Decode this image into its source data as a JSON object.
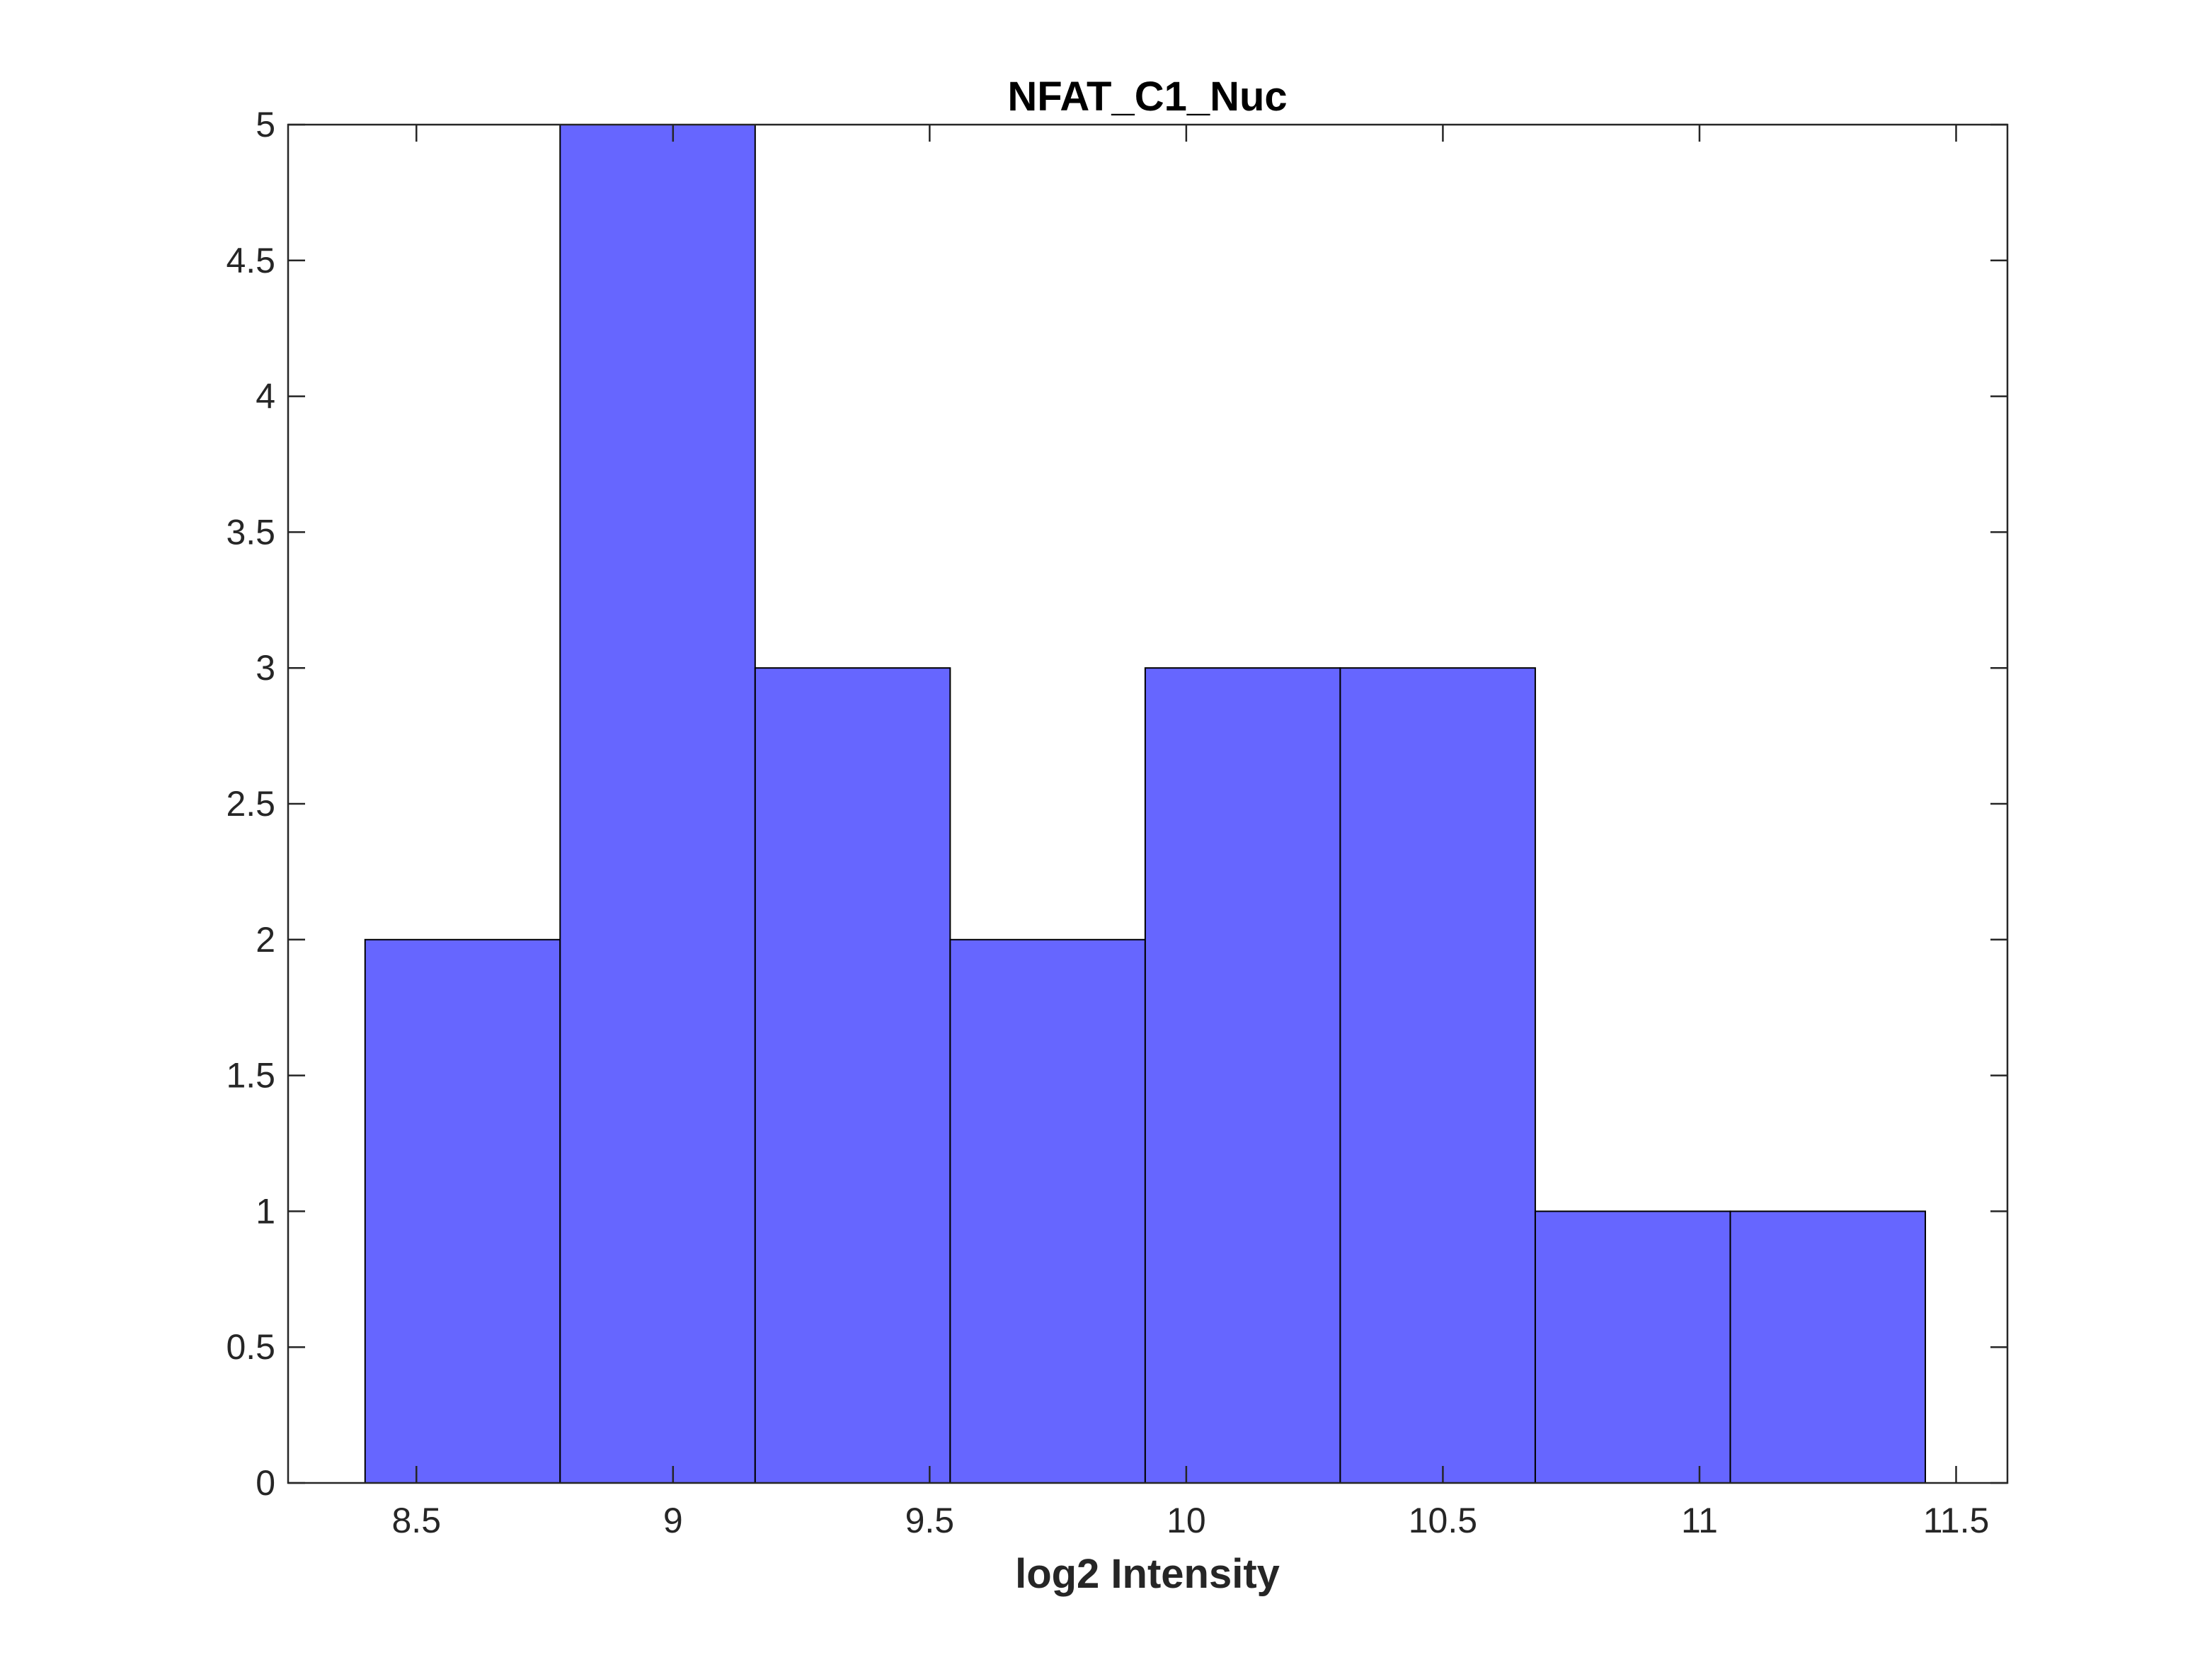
{
  "chart_data": {
    "type": "bar",
    "subtype": "histogram",
    "title": "NFAT_C1_Nuc",
    "xlabel": "log2 Intensity",
    "ylabel": "",
    "xlim": [
      8.25,
      11.6
    ],
    "ylim": [
      0,
      5
    ],
    "bin_edges": [
      8.4,
      8.78,
      9.16,
      9.54,
      9.92,
      10.3,
      10.68,
      11.06,
      11.44
    ],
    "values": [
      2,
      5,
      3,
      2,
      3,
      3,
      1,
      1
    ],
    "x_ticks": [
      "8.5",
      "9",
      "9.5",
      "10",
      "10.5",
      "11",
      "11.5"
    ],
    "x_tick_values": [
      8.5,
      9,
      9.5,
      10,
      10.5,
      11,
      11.5
    ],
    "y_ticks": [
      "0",
      "0.5",
      "1",
      "1.5",
      "2",
      "2.5",
      "3",
      "3.5",
      "4",
      "4.5",
      "5"
    ],
    "y_tick_values": [
      0,
      0.5,
      1,
      1.5,
      2,
      2.5,
      3,
      3.5,
      4,
      4.5,
      5
    ],
    "grid": false,
    "legend": "none",
    "colors": {
      "bar_fill": "#6666ff",
      "bar_edge": "#000000",
      "axis": "#262626",
      "background": "#ffffff"
    }
  }
}
